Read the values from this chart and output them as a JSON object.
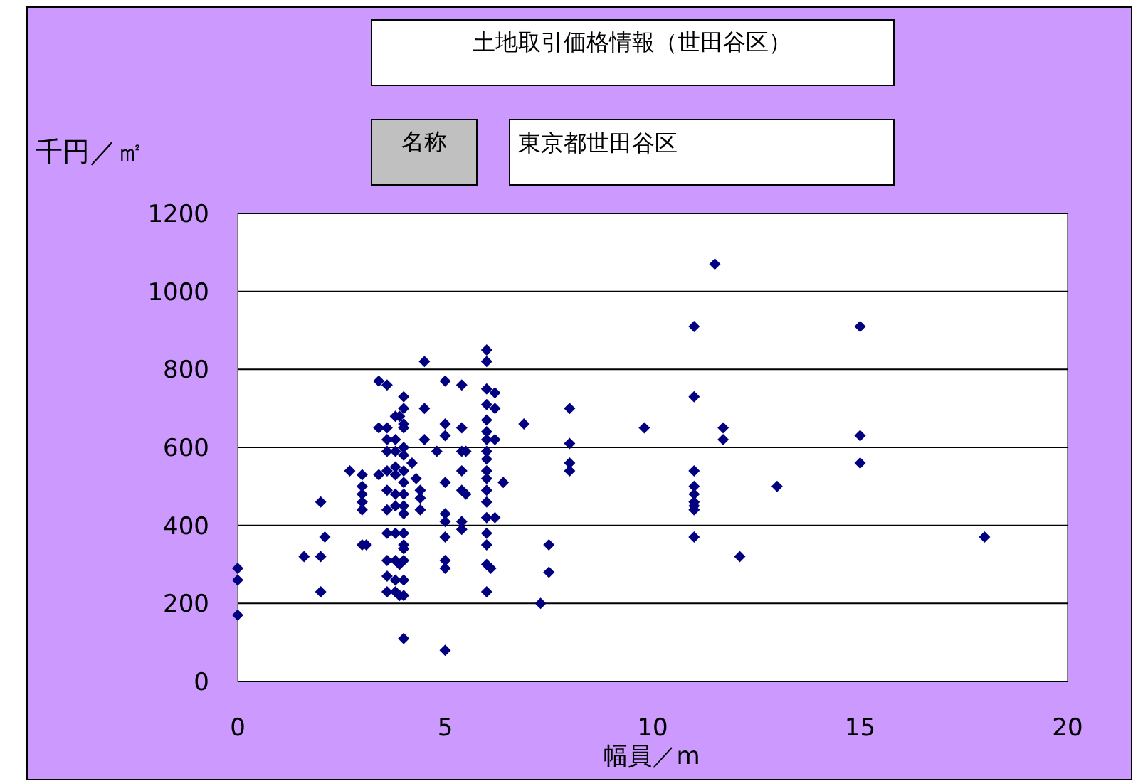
{
  "chart_data": {
    "type": "scatter",
    "title": "土地取引価格情報（世田谷区）",
    "annotations": [
      "名称",
      "東京都世田谷区"
    ],
    "xlabel": "幅員／m",
    "ylabel": "千円／㎡",
    "xlim": [
      0,
      20
    ],
    "ylim": [
      0,
      1200
    ],
    "xticks": [
      0,
      5,
      10,
      15,
      20
    ],
    "yticks": [
      0,
      200,
      400,
      600,
      800,
      1000,
      1200
    ],
    "grid": "y",
    "marker": "diamond",
    "series": [
      {
        "color": "#000080",
        "x": [
          0,
          0,
          0,
          1.6,
          2,
          2,
          2,
          2.1,
          2.7,
          3,
          3,
          3,
          3,
          3,
          3,
          3.1,
          3.4,
          3.4,
          3.4,
          3.6,
          3.6,
          3.6,
          3.6,
          3.6,
          3.6,
          3.6,
          3.6,
          3.6,
          3.6,
          3.6,
          3.8,
          3.8,
          3.8,
          3.8,
          3.8,
          3.8,
          3.8,
          3.8,
          3.8,
          3.8,
          3.8,
          4,
          4,
          4,
          4,
          4,
          4,
          4,
          4,
          4,
          4,
          4,
          4,
          4,
          4,
          4,
          4,
          4,
          4,
          3.9,
          3.9,
          3.9,
          4.2,
          4.3,
          4.4,
          4.4,
          4.4,
          4.5,
          4.5,
          4.5,
          4.8,
          5,
          5,
          5,
          5,
          5,
          5,
          5,
          5,
          5,
          5,
          5.4,
          5.4,
          5.4,
          5.4,
          5.4,
          5.4,
          5.4,
          5.5,
          5.5,
          6,
          6,
          6,
          6,
          6,
          6,
          6,
          6,
          6,
          6,
          6,
          6,
          6,
          6,
          6,
          6,
          6,
          6,
          6.1,
          6.2,
          6.2,
          6.2,
          6.2,
          6.4,
          6.9,
          7.5,
          7.5,
          7.3,
          8,
          8,
          8,
          8,
          9.8,
          11,
          11,
          11,
          11,
          11,
          11,
          11,
          11,
          11,
          11.5,
          11.7,
          11.7,
          12.1,
          13,
          15,
          15,
          15,
          18
        ],
        "values": [
          290,
          260,
          170,
          320,
          460,
          320,
          230,
          370,
          540,
          530,
          500,
          480,
          460,
          440,
          350,
          350,
          530,
          650,
          770,
          760,
          650,
          620,
          590,
          540,
          490,
          440,
          380,
          310,
          270,
          230,
          680,
          620,
          590,
          550,
          530,
          480,
          450,
          380,
          310,
          260,
          230,
          730,
          700,
          660,
          650,
          600,
          580,
          540,
          510,
          480,
          450,
          430,
          380,
          350,
          340,
          310,
          260,
          220,
          110,
          680,
          300,
          220,
          560,
          520,
          490,
          470,
          440,
          820,
          700,
          620,
          590,
          770,
          660,
          630,
          510,
          430,
          410,
          370,
          310,
          290,
          80,
          760,
          650,
          590,
          540,
          490,
          390,
          410,
          590,
          480,
          850,
          820,
          750,
          710,
          670,
          640,
          620,
          590,
          570,
          540,
          520,
          490,
          460,
          420,
          380,
          350,
          300,
          230,
          290,
          700,
          740,
          620,
          420,
          510,
          660,
          350,
          280,
          200,
          700,
          610,
          560,
          540,
          650,
          910,
          730,
          540,
          500,
          480,
          460,
          450,
          440,
          370,
          1070,
          650,
          620,
          320,
          500,
          910,
          630,
          560,
          370
        ]
      }
    ]
  }
}
